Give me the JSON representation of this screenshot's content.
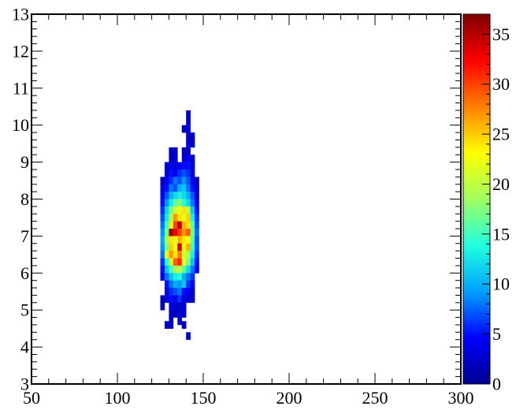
{
  "chart_data": {
    "type": "heatmap",
    "title": "",
    "xlabel": "",
    "ylabel": "",
    "xlim": [
      50,
      300
    ],
    "ylim": [
      3,
      13
    ],
    "xbin_width": 2.5,
    "ybin_width": 0.2,
    "zlim": [
      0,
      37
    ],
    "x_ticks": [
      50,
      100,
      150,
      200,
      250,
      300
    ],
    "y_ticks": [
      3,
      4,
      5,
      6,
      7,
      8,
      9,
      10,
      11,
      12,
      13
    ],
    "x_tick_labels": [
      "50",
      "100",
      "150",
      "200",
      "250",
      "300"
    ],
    "y_tick_labels": [
      "3",
      "4",
      "5",
      "6",
      "7",
      "8",
      "9",
      "10",
      "11",
      "12",
      "13"
    ],
    "colorbar_ticks": [
      0,
      5,
      10,
      15,
      20,
      25,
      30,
      35
    ],
    "colorbar_tick_labels": [
      "0",
      "5",
      "10",
      "15",
      "20",
      "25",
      "30",
      "35"
    ],
    "colormap": [
      "#00008f",
      "#0000ff",
      "#00a0ff",
      "#20ffe0",
      "#a0ff60",
      "#ffff00",
      "#ff8000",
      "#ff0000",
      "#800000"
    ],
    "grid": false,
    "legend": "none",
    "cells": [
      [
        141.25,
        10.3,
        2
      ],
      [
        141.25,
        10.1,
        2
      ],
      [
        138.75,
        9.9,
        2
      ],
      [
        141.25,
        9.9,
        3
      ],
      [
        141.25,
        9.7,
        2
      ],
      [
        143.75,
        9.7,
        2
      ],
      [
        141.25,
        9.5,
        3
      ],
      [
        143.75,
        9.5,
        2
      ],
      [
        138.75,
        9.3,
        2
      ],
      [
        131.25,
        9.3,
        2
      ],
      [
        133.75,
        9.3,
        2
      ],
      [
        141.25,
        9.3,
        2
      ],
      [
        131.25,
        9.1,
        2
      ],
      [
        133.75,
        9.1,
        3
      ],
      [
        138.75,
        9.1,
        3
      ],
      [
        141.25,
        9.1,
        4
      ],
      [
        143.75,
        9.1,
        2
      ],
      [
        128.75,
        8.9,
        2
      ],
      [
        131.25,
        8.9,
        4
      ],
      [
        133.75,
        8.9,
        3
      ],
      [
        136.25,
        8.9,
        4
      ],
      [
        138.75,
        8.9,
        5
      ],
      [
        141.25,
        8.9,
        5
      ],
      [
        143.75,
        8.9,
        3
      ],
      [
        128.75,
        8.7,
        3
      ],
      [
        131.25,
        8.7,
        5
      ],
      [
        133.75,
        8.7,
        4
      ],
      [
        136.25,
        8.7,
        6
      ],
      [
        138.75,
        8.7,
        7
      ],
      [
        141.25,
        8.7,
        6
      ],
      [
        143.75,
        8.7,
        3
      ],
      [
        126.25,
        8.5,
        2
      ],
      [
        128.75,
        8.5,
        4
      ],
      [
        131.25,
        8.5,
        6
      ],
      [
        133.75,
        8.5,
        8
      ],
      [
        136.25,
        8.5,
        7
      ],
      [
        138.75,
        8.5,
        9
      ],
      [
        141.25,
        8.5,
        7
      ],
      [
        143.75,
        8.5,
        4
      ],
      [
        146.25,
        8.5,
        2
      ],
      [
        126.25,
        8.3,
        3
      ],
      [
        128.75,
        8.3,
        5
      ],
      [
        131.25,
        8.3,
        8
      ],
      [
        133.75,
        8.3,
        7
      ],
      [
        136.25,
        8.3,
        10
      ],
      [
        138.75,
        8.3,
        11
      ],
      [
        141.25,
        8.3,
        8
      ],
      [
        143.75,
        8.3,
        5
      ],
      [
        146.25,
        8.3,
        3
      ],
      [
        126.25,
        8.1,
        4
      ],
      [
        128.75,
        8.1,
        7
      ],
      [
        131.25,
        8.1,
        10
      ],
      [
        133.75,
        8.1,
        12
      ],
      [
        136.25,
        8.1,
        13
      ],
      [
        138.75,
        8.1,
        12
      ],
      [
        141.25,
        8.1,
        10
      ],
      [
        143.75,
        8.1,
        7
      ],
      [
        146.25,
        8.1,
        3
      ],
      [
        126.25,
        7.9,
        5
      ],
      [
        128.75,
        7.9,
        9
      ],
      [
        131.25,
        7.9,
        13
      ],
      [
        133.75,
        7.9,
        16
      ],
      [
        136.25,
        7.9,
        18
      ],
      [
        138.75,
        7.9,
        14
      ],
      [
        141.25,
        7.9,
        12
      ],
      [
        143.75,
        7.9,
        8
      ],
      [
        146.25,
        7.9,
        4
      ],
      [
        126.25,
        7.7,
        6
      ],
      [
        128.75,
        7.7,
        12
      ],
      [
        131.25,
        7.7,
        17
      ],
      [
        133.75,
        7.7,
        21
      ],
      [
        136.25,
        7.7,
        22
      ],
      [
        138.75,
        7.7,
        24
      ],
      [
        141.25,
        7.7,
        20
      ],
      [
        143.75,
        7.7,
        11
      ],
      [
        146.25,
        7.7,
        5
      ],
      [
        126.25,
        7.5,
        7
      ],
      [
        128.75,
        7.5,
        13
      ],
      [
        131.25,
        7.5,
        19
      ],
      [
        133.75,
        7.5,
        27
      ],
      [
        136.25,
        7.5,
        24
      ],
      [
        138.75,
        7.5,
        22
      ],
      [
        141.25,
        7.5,
        25
      ],
      [
        143.75,
        7.5,
        13
      ],
      [
        146.25,
        7.5,
        6
      ],
      [
        126.25,
        7.3,
        8
      ],
      [
        128.75,
        7.3,
        15
      ],
      [
        131.25,
        7.3,
        22
      ],
      [
        133.75,
        7.3,
        30
      ],
      [
        136.25,
        7.3,
        35
      ],
      [
        138.75,
        7.3,
        26
      ],
      [
        141.25,
        7.3,
        24
      ],
      [
        143.75,
        7.3,
        16
      ],
      [
        146.25,
        7.3,
        7
      ],
      [
        126.25,
        7.1,
        9
      ],
      [
        128.75,
        7.1,
        17
      ],
      [
        131.25,
        7.1,
        36
      ],
      [
        133.75,
        7.1,
        33
      ],
      [
        136.25,
        7.1,
        30
      ],
      [
        138.75,
        7.1,
        27
      ],
      [
        141.25,
        7.1,
        29
      ],
      [
        143.75,
        7.1,
        17
      ],
      [
        146.25,
        7.1,
        8
      ],
      [
        126.25,
        6.9,
        10
      ],
      [
        128.75,
        6.9,
        19
      ],
      [
        131.25,
        6.9,
        24
      ],
      [
        133.75,
        6.9,
        22
      ],
      [
        136.25,
        6.9,
        26
      ],
      [
        138.75,
        6.9,
        24
      ],
      [
        141.25,
        6.9,
        23
      ],
      [
        143.75,
        6.9,
        16
      ],
      [
        146.25,
        6.9,
        7
      ],
      [
        126.25,
        6.7,
        9
      ],
      [
        128.75,
        6.7,
        17
      ],
      [
        131.25,
        6.7,
        25
      ],
      [
        133.75,
        6.7,
        22
      ],
      [
        136.25,
        6.7,
        34
      ],
      [
        138.75,
        6.7,
        23
      ],
      [
        141.25,
        6.7,
        26
      ],
      [
        143.75,
        6.7,
        15
      ],
      [
        146.25,
        6.7,
        7
      ],
      [
        126.25,
        6.5,
        8
      ],
      [
        128.75,
        6.5,
        22
      ],
      [
        131.25,
        6.5,
        27
      ],
      [
        133.75,
        6.5,
        24
      ],
      [
        136.25,
        6.5,
        28
      ],
      [
        138.75,
        6.5,
        21
      ],
      [
        141.25,
        6.5,
        19
      ],
      [
        143.75,
        6.5,
        13
      ],
      [
        146.25,
        6.5,
        6
      ],
      [
        126.25,
        6.3,
        6
      ],
      [
        128.75,
        6.3,
        14
      ],
      [
        131.25,
        6.3,
        21
      ],
      [
        133.75,
        6.3,
        29
      ],
      [
        136.25,
        6.3,
        31
      ],
      [
        138.75,
        6.3,
        22
      ],
      [
        141.25,
        6.3,
        17
      ],
      [
        143.75,
        6.3,
        11
      ],
      [
        146.25,
        6.3,
        5
      ],
      [
        126.25,
        6.1,
        5
      ],
      [
        128.75,
        6.1,
        11
      ],
      [
        131.25,
        6.1,
        15
      ],
      [
        133.75,
        6.1,
        19
      ],
      [
        136.25,
        6.1,
        20
      ],
      [
        138.75,
        6.1,
        16
      ],
      [
        141.25,
        6.1,
        12
      ],
      [
        143.75,
        6.1,
        8
      ],
      [
        146.25,
        6.1,
        4
      ],
      [
        126.25,
        5.9,
        4
      ],
      [
        128.75,
        5.9,
        8
      ],
      [
        131.25,
        5.9,
        11
      ],
      [
        133.75,
        5.9,
        13
      ],
      [
        136.25,
        5.9,
        14
      ],
      [
        138.75,
        5.9,
        10
      ],
      [
        141.25,
        5.9,
        8
      ],
      [
        143.75,
        5.9,
        6
      ],
      [
        128.75,
        5.7,
        5
      ],
      [
        131.25,
        5.7,
        8
      ],
      [
        133.75,
        5.7,
        10
      ],
      [
        136.25,
        5.7,
        9
      ],
      [
        138.75,
        5.7,
        11
      ],
      [
        141.25,
        5.7,
        6
      ],
      [
        143.75,
        5.7,
        4
      ],
      [
        128.75,
        5.5,
        3
      ],
      [
        131.25,
        5.5,
        6
      ],
      [
        133.75,
        5.5,
        7
      ],
      [
        136.25,
        5.5,
        8
      ],
      [
        138.75,
        5.5,
        5
      ],
      [
        141.25,
        5.5,
        4
      ],
      [
        143.75,
        5.5,
        2
      ],
      [
        126.25,
        5.3,
        2
      ],
      [
        128.75,
        5.3,
        3
      ],
      [
        131.25,
        5.3,
        5
      ],
      [
        133.75,
        5.3,
        4
      ],
      [
        136.25,
        5.3,
        6
      ],
      [
        138.75,
        5.3,
        3
      ],
      [
        141.25,
        5.3,
        3
      ],
      [
        143.75,
        5.3,
        2
      ],
      [
        126.25,
        5.1,
        2
      ],
      [
        131.25,
        5.1,
        3
      ],
      [
        133.75,
        5.1,
        3
      ],
      [
        136.25,
        5.1,
        2
      ],
      [
        138.75,
        5.1,
        3
      ],
      [
        131.25,
        4.9,
        2
      ],
      [
        133.75,
        4.9,
        2
      ],
      [
        136.25,
        4.9,
        3
      ],
      [
        138.75,
        4.9,
        2
      ],
      [
        131.25,
        4.7,
        2
      ],
      [
        136.25,
        4.7,
        2
      ],
      [
        128.75,
        4.6,
        2
      ],
      [
        131.25,
        4.6,
        2
      ],
      [
        138.75,
        4.6,
        2
      ],
      [
        141.25,
        4.3,
        2
      ]
    ]
  }
}
